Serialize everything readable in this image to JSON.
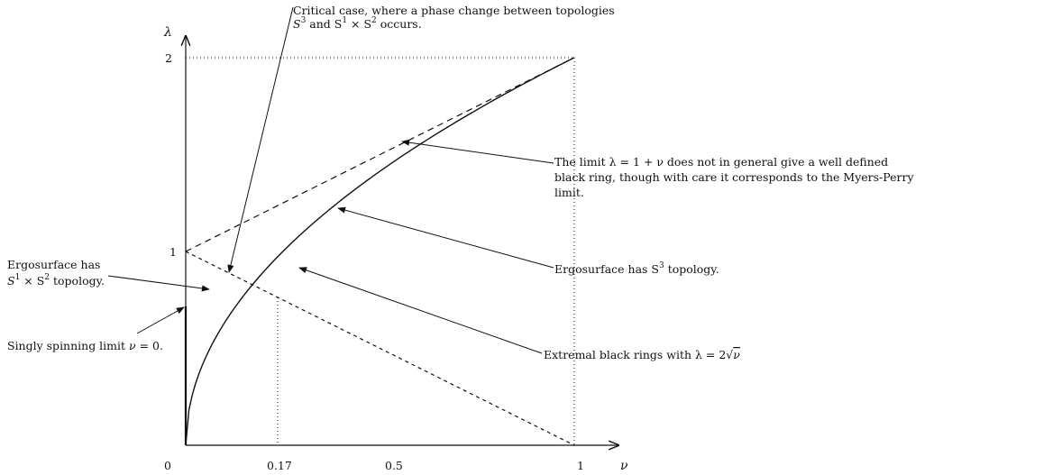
{
  "axes": {
    "x_name": "ν",
    "y_name": "λ",
    "x_ticks": [
      "0",
      "0.17",
      "0.5",
      "1"
    ],
    "y_ticks": [
      "1",
      "2"
    ]
  },
  "curves": {
    "extremal": "λ = 2√ν",
    "upper_dashed": "λ = 1 + ν",
    "lower_dashed": "λ = 1 − ν"
  },
  "annotations": {
    "critical_line1": "Critical case, where a phase change between topologies",
    "critical_line2_a": "S",
    "critical_line2_a_sup": "3",
    "critical_line2_b": " and S",
    "critical_line2_b_sup": "1",
    "critical_line2_c": " × S",
    "critical_line2_c_sup": "2",
    "critical_line2_d": " occurs.",
    "limit_line1": "The limit λ = 1 + ν does not in general give a well defined",
    "limit_line2": "black ring, though with care it corresponds to the Myers-Perry",
    "limit_line3": "limit.",
    "ergo_s3_a": "Ergosurface has S",
    "ergo_s3_sup": "3",
    "ergo_s3_b": " topology.",
    "extremal_a": "Extremal black rings with λ = 2√",
    "extremal_b": "ν",
    "ergo_s1s2_line1": "Ergosurface has",
    "ergo_s1s2_a": "S",
    "ergo_s1s2_sup1": "1",
    "ergo_s1s2_b": " × S",
    "ergo_s1s2_sup2": "2",
    "ergo_s1s2_c": " topology.",
    "singly_a": "Singly spinning limit ",
    "singly_b": "ν",
    "singly_c": " = 0."
  }
}
